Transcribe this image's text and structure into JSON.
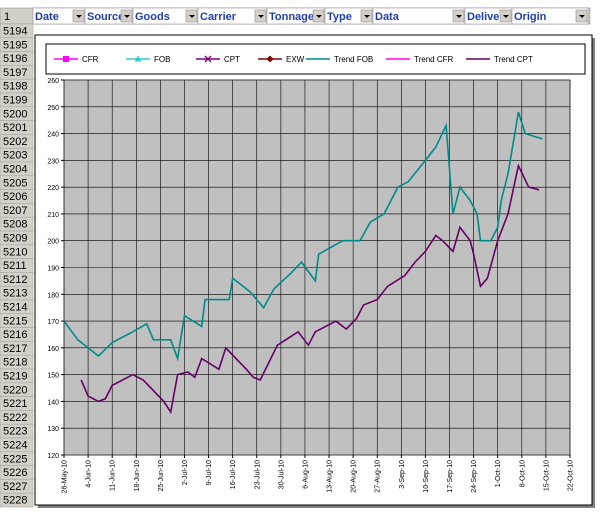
{
  "sheet": {
    "corner": "1",
    "columns": [
      "Date",
      "Source",
      "Goods",
      "Carrier",
      "Tonnage",
      "Type",
      "Data",
      "Delive",
      "Origin"
    ],
    "rows": [
      5194,
      5195,
      5196,
      5197,
      5198,
      5199,
      5200,
      5201,
      5202,
      5203,
      5204,
      5205,
      5206,
      5207,
      5208,
      5209,
      5210,
      5211,
      5212,
      5213,
      5214,
      5215,
      5216,
      5217,
      5218,
      5219,
      5220,
      5221,
      5222,
      5223,
      5224,
      5225,
      5226,
      5227,
      5228
    ]
  },
  "chart_data": {
    "type": "line",
    "ylim": [
      120,
      260
    ],
    "yticks": [
      120,
      130,
      140,
      150,
      160,
      170,
      180,
      190,
      200,
      210,
      220,
      230,
      240,
      250,
      260
    ],
    "xlim": [
      "2010-05-28",
      "2010-10-22"
    ],
    "xticks": [
      {
        "value": "2010-05-28",
        "label": "28-May-10"
      },
      {
        "value": "2010-06-04",
        "label": "4-Jun-10"
      },
      {
        "value": "2010-06-11",
        "label": "11-Jun-10"
      },
      {
        "value": "2010-06-18",
        "label": "18-Jun-10"
      },
      {
        "value": "2010-06-25",
        "label": "25-Jun-10"
      },
      {
        "value": "2010-07-02",
        "label": "2-Jul-10"
      },
      {
        "value": "2010-07-09",
        "label": "9-Jul-10"
      },
      {
        "value": "2010-07-16",
        "label": "16-Jul-10"
      },
      {
        "value": "2010-07-23",
        "label": "23-Jul-10"
      },
      {
        "value": "2010-07-30",
        "label": "30-Jul-10"
      },
      {
        "value": "2010-08-06",
        "label": "6-Aug-10"
      },
      {
        "value": "2010-08-13",
        "label": "13-Aug-10"
      },
      {
        "value": "2010-08-20",
        "label": "20-Aug-10"
      },
      {
        "value": "2010-08-27",
        "label": "27-Aug-10"
      },
      {
        "value": "2010-09-03",
        "label": "3-Sep-10"
      },
      {
        "value": "2010-09-10",
        "label": "10-Sep-10"
      },
      {
        "value": "2010-09-17",
        "label": "17-Sep-10"
      },
      {
        "value": "2010-09-24",
        "label": "24-Sep-10"
      },
      {
        "value": "2010-10-01",
        "label": "1-Oct-10"
      },
      {
        "value": "2010-10-08",
        "label": "8-Oct-10"
      },
      {
        "value": "2010-10-15",
        "label": "15-Oct-10"
      },
      {
        "value": "2010-10-22",
        "label": "22-Oct-10"
      }
    ],
    "grid": true,
    "series": [
      {
        "name": "CFR",
        "color": "#ff00ff",
        "marker": "square",
        "x": [],
        "values": []
      },
      {
        "name": "FOB",
        "color": "#33cccc",
        "marker": "triangle",
        "x": [],
        "values": []
      },
      {
        "name": "CPT",
        "color": "#800080",
        "marker": "cross",
        "x": [],
        "values": []
      },
      {
        "name": "EXW",
        "color": "#800000",
        "marker": "diamond",
        "x": [],
        "values": []
      },
      {
        "name": "Trend FOB",
        "color": "#008b8b",
        "marker": "none",
        "x": [
          "2010-05-28",
          "2010-06-01",
          "2010-06-05",
          "2010-06-07",
          "2010-06-11",
          "2010-06-17",
          "2010-06-21",
          "2010-06-23",
          "2010-06-28",
          "2010-06-30",
          "2010-07-02",
          "2010-07-07",
          "2010-07-08",
          "2010-07-15",
          "2010-07-16",
          "2010-07-21",
          "2010-07-25",
          "2010-07-28",
          "2010-08-02",
          "2010-08-05",
          "2010-08-09",
          "2010-08-10",
          "2010-08-17",
          "2010-08-22",
          "2010-08-25",
          "2010-08-29",
          "2010-09-02",
          "2010-09-05",
          "2010-09-10",
          "2010-09-13",
          "2010-09-16",
          "2010-09-18",
          "2010-09-20",
          "2010-09-23",
          "2010-09-25",
          "2010-09-26",
          "2010-09-29",
          "2010-10-01",
          "2010-10-02",
          "2010-10-04",
          "2010-10-07",
          "2010-10-09",
          "2010-10-14"
        ],
        "values": [
          170,
          163,
          159,
          157,
          162,
          166,
          169,
          163,
          163,
          156,
          172,
          168,
          178,
          178,
          186,
          181,
          175,
          182,
          188,
          192,
          185,
          195,
          200,
          200,
          207,
          210,
          220,
          222,
          230,
          235,
          243,
          210,
          220,
          215,
          210,
          200,
          200,
          205,
          215,
          225,
          248,
          240,
          238
        ]
      },
      {
        "name": "Trend CFR",
        "color": "#ff00ff",
        "marker": "none",
        "x": [],
        "values": []
      },
      {
        "name": "Trend CPT",
        "color": "#660066",
        "marker": "none",
        "x": [
          "2010-06-02",
          "2010-06-04",
          "2010-06-07",
          "2010-06-09",
          "2010-06-11",
          "2010-06-17",
          "2010-06-20",
          "2010-06-23",
          "2010-06-26",
          "2010-06-28",
          "2010-06-30",
          "2010-07-03",
          "2010-07-05",
          "2010-07-07",
          "2010-07-12",
          "2010-07-14",
          "2010-07-20",
          "2010-07-22",
          "2010-07-24",
          "2010-07-29",
          "2010-08-04",
          "2010-08-07",
          "2010-08-09",
          "2010-08-15",
          "2010-08-18",
          "2010-08-21",
          "2010-08-23",
          "2010-08-27",
          "2010-08-30",
          "2010-09-04",
          "2010-09-07",
          "2010-09-10",
          "2010-09-13",
          "2010-09-15",
          "2010-09-18",
          "2010-09-20",
          "2010-09-23",
          "2010-09-24",
          "2010-09-26",
          "2010-09-28",
          "2010-10-01",
          "2010-10-04",
          "2010-10-07",
          "2010-10-10",
          "2010-10-13"
        ],
        "values": [
          148,
          142,
          140,
          141,
          146,
          150,
          148,
          144,
          140,
          136,
          150,
          151,
          149,
          156,
          152,
          160,
          152,
          149,
          148,
          161,
          166,
          161,
          166,
          170,
          167,
          171,
          176,
          178,
          183,
          187,
          192,
          196,
          202,
          200,
          196,
          205,
          200,
          195,
          183,
          186,
          200,
          210,
          228,
          220,
          219
        ]
      }
    ]
  }
}
